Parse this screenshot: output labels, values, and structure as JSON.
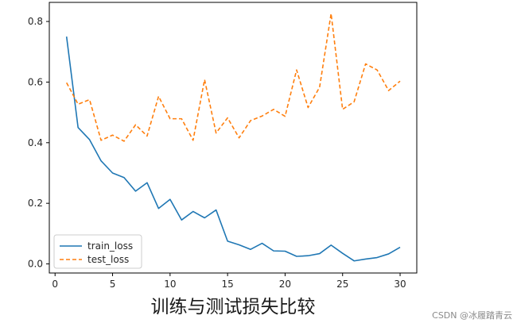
{
  "chart_data": {
    "type": "line",
    "title": "训练与测试损失比较",
    "xlabel": "",
    "ylabel": "",
    "xlim": [
      -0.5,
      31.45
    ],
    "ylim": [
      -0.03,
      0.863
    ],
    "xticks": [
      0,
      5,
      10,
      15,
      20,
      25,
      30
    ],
    "yticks": [
      0.0,
      0.2,
      0.4,
      0.6,
      0.8
    ],
    "xtick_labels": [
      "0",
      "5",
      "10",
      "15",
      "20",
      "25",
      "30"
    ],
    "ytick_labels": [
      "0.0",
      "0.2",
      "0.4",
      "0.6",
      "0.8"
    ],
    "grid": false,
    "legend_position": "lower-left",
    "x": [
      1,
      2,
      3,
      4,
      5,
      6,
      7,
      8,
      9,
      10,
      11,
      12,
      13,
      14,
      15,
      16,
      17,
      18,
      19,
      20,
      21,
      22,
      23,
      24,
      25,
      26,
      27,
      28,
      29,
      30
    ],
    "series": [
      {
        "name": "train_loss",
        "color": "#1f77b4",
        "style": "solid",
        "values": [
          0.75,
          0.45,
          0.41,
          0.34,
          0.3,
          0.285,
          0.24,
          0.268,
          0.183,
          0.213,
          0.145,
          0.173,
          0.152,
          0.178,
          0.075,
          0.063,
          0.048,
          0.068,
          0.043,
          0.042,
          0.025,
          0.027,
          0.034,
          0.062,
          0.035,
          0.01,
          0.016,
          0.021,
          0.033,
          0.055
        ]
      },
      {
        "name": "test_loss",
        "color": "#ff7f0e",
        "style": "dashed",
        "values": [
          0.598,
          0.527,
          0.542,
          0.408,
          0.425,
          0.405,
          0.459,
          0.422,
          0.553,
          0.479,
          0.479,
          0.408,
          0.608,
          0.432,
          0.482,
          0.416,
          0.473,
          0.488,
          0.51,
          0.487,
          0.64,
          0.516,
          0.583,
          0.826,
          0.51,
          0.535,
          0.66,
          0.64,
          0.572,
          0.603
        ]
      }
    ]
  },
  "watermark": "CSDN @冰履踏青云"
}
